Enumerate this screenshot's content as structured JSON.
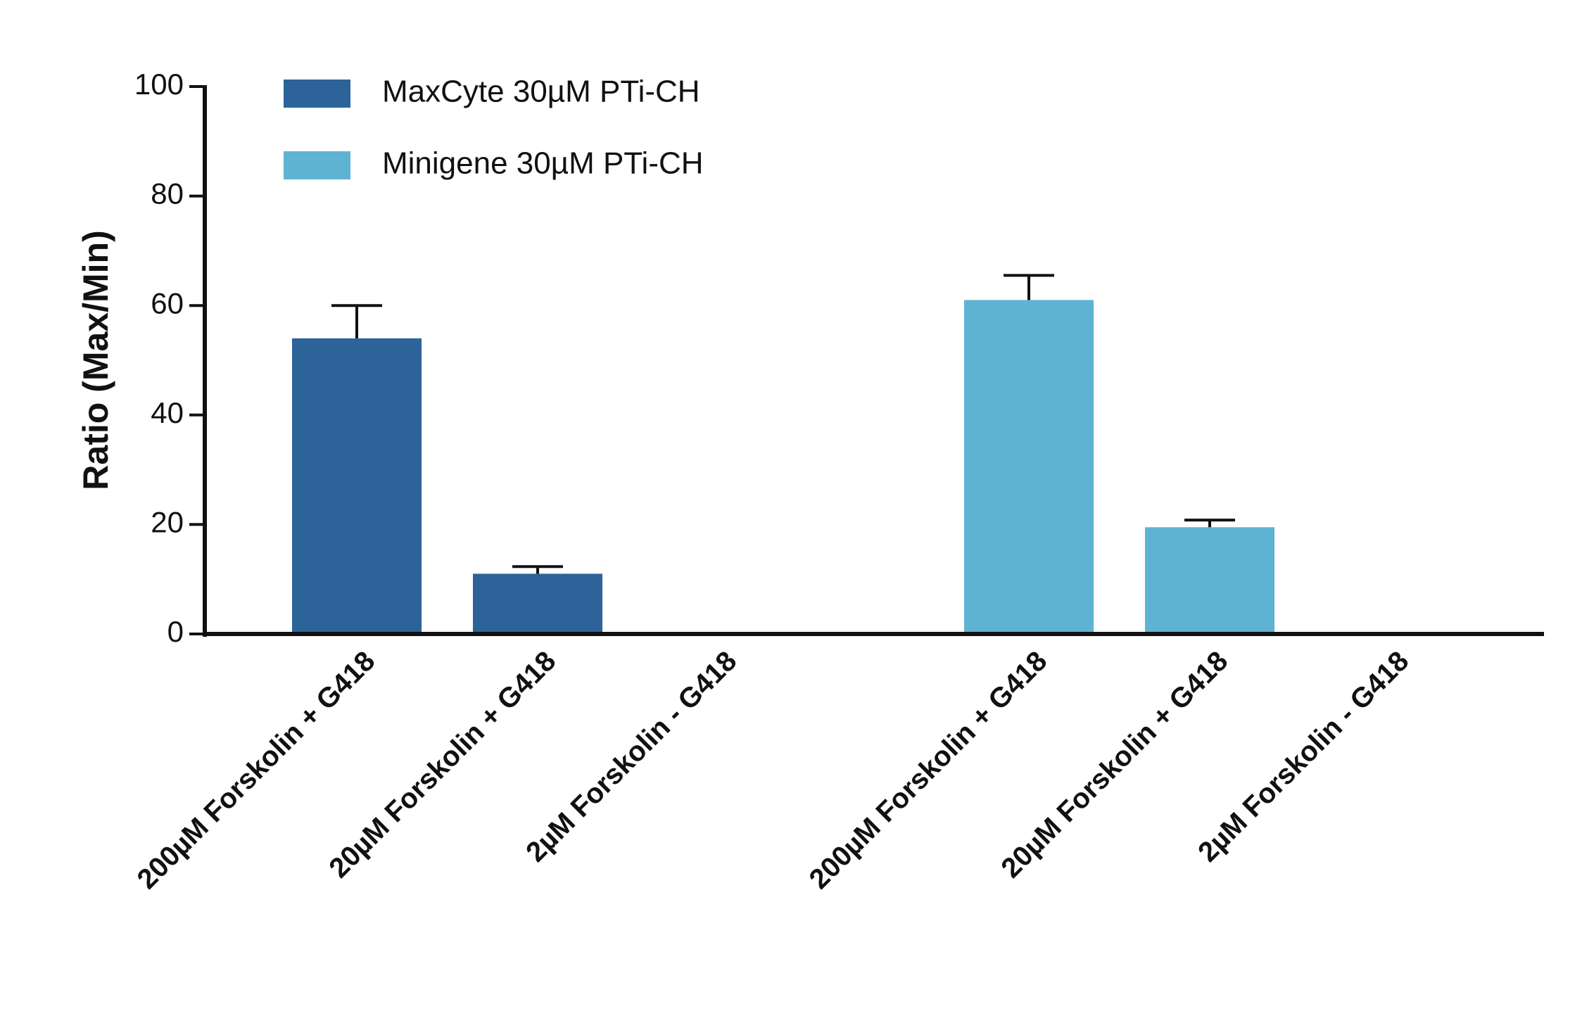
{
  "chart_data": {
    "type": "bar",
    "y_label": "Ratio (Max/Min)",
    "categories": [
      "200µM Forskolin + G418",
      "20µM Forskolin + G418",
      "2µM Forskolin - G418",
      "200µM Forskolin + G418",
      "20µM Forskolin + G418",
      "2µM Forskolin - G418"
    ],
    "series": [
      {
        "name": "MaxCyte 30µM PTi-CH",
        "color": "#2c6399",
        "values": [
          54,
          11,
          null,
          null,
          null,
          null
        ],
        "errors": [
          6,
          1.3,
          null,
          null,
          null,
          null
        ]
      },
      {
        "name": "Minigene 30µM PTi-CH",
        "color": "#5db3d1",
        "values": [
          null,
          null,
          null,
          61,
          19.5,
          null
        ],
        "errors": [
          null,
          null,
          null,
          4.5,
          1.3,
          null
        ]
      }
    ],
    "ylim": [
      0,
      100
    ],
    "yticks": [
      0,
      20,
      40,
      60,
      80,
      100
    ],
    "legend": "top-left"
  }
}
